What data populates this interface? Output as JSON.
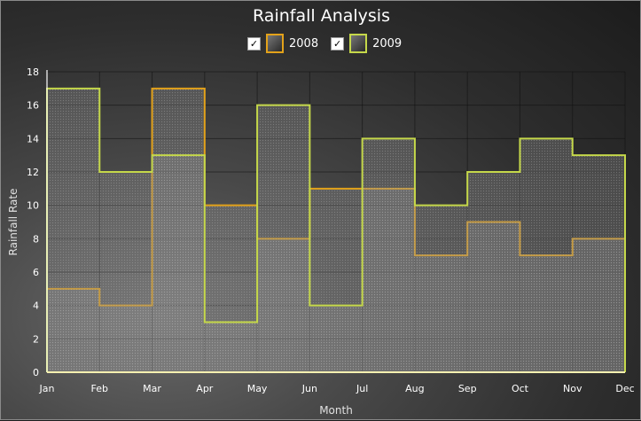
{
  "chart_data": {
    "type": "area",
    "step": true,
    "title": "Rainfall Analysis",
    "xlabel": "Month",
    "ylabel": "Rainfall Rate",
    "ylim": [
      0,
      18
    ],
    "yticks": [
      0,
      2,
      4,
      6,
      8,
      10,
      12,
      14,
      16,
      18
    ],
    "categories": [
      "Jan",
      "Feb",
      "Mar",
      "Apr",
      "May",
      "Jun",
      "Jul",
      "Aug",
      "Sep",
      "Oct",
      "Nov",
      "Dec"
    ],
    "grid": true,
    "legend_position": "top-center",
    "series": [
      {
        "name": "2008",
        "color": "#e3a21a",
        "checked": true,
        "values": [
          5,
          4,
          17,
          10,
          8,
          11,
          11,
          7,
          9,
          7,
          8,
          8
        ]
      },
      {
        "name": "2009",
        "color": "#c5d84a",
        "checked": true,
        "values": [
          17,
          12,
          13,
          3,
          16,
          4,
          14,
          10,
          12,
          14,
          13,
          13
        ]
      }
    ]
  },
  "legend": {
    "check_glyph": "✓"
  }
}
